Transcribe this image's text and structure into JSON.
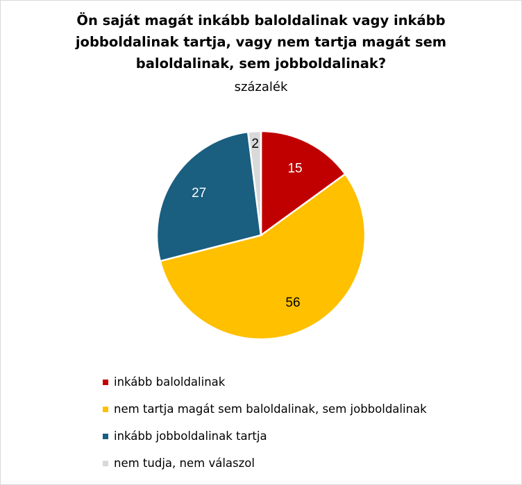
{
  "chart_data": {
    "type": "pie",
    "title_lines": [
      "Ön saját magát inkább baloldalinak vagy inkább",
      "jobboldalinak tartja, vagy nem tartja magát sem",
      "baloldalinak, sem jobboldalinak?"
    ],
    "subtitle": "százalék",
    "legend_position": "bottom",
    "slices": [
      {
        "label": "inkább baloldalinak",
        "value": 15,
        "color": "#C00000",
        "label_color": "#ffffff"
      },
      {
        "label": "nem tartja magát sem baloldalinak, sem jobboldalinak",
        "value": 56,
        "color": "#FFC000",
        "label_color": "#000000"
      },
      {
        "label": "inkább jobboldalinak tartja",
        "value": 27,
        "color": "#1A5E80",
        "label_color": "#ffffff"
      },
      {
        "label": "nem tudja, nem válaszol",
        "value": 2,
        "color": "#D9D9D9",
        "label_color": "#000000"
      }
    ]
  }
}
